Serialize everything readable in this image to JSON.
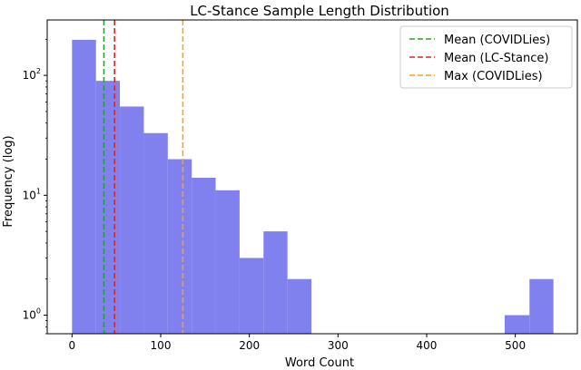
{
  "chart_data": {
    "type": "bar",
    "title": "LC-Stance Sample Length Distribution",
    "xlabel": "Word Count",
    "ylabel": "Frequency (log)",
    "y_scale": "log",
    "xlim": [
      -28,
      570
    ],
    "ylim": [
      0.7,
      290
    ],
    "bar_color": "#8080ee",
    "bins": [
      {
        "x0": 0,
        "x1": 27,
        "count": 198
      },
      {
        "x0": 27,
        "x1": 54,
        "count": 90
      },
      {
        "x0": 54,
        "x1": 81,
        "count": 55
      },
      {
        "x0": 81,
        "x1": 108,
        "count": 33
      },
      {
        "x0": 108,
        "x1": 135,
        "count": 20
      },
      {
        "x0": 135,
        "x1": 162,
        "count": 14
      },
      {
        "x0": 162,
        "x1": 189,
        "count": 11
      },
      {
        "x0": 189,
        "x1": 216,
        "count": 3
      },
      {
        "x0": 216,
        "x1": 243,
        "count": 5
      },
      {
        "x0": 243,
        "x1": 270,
        "count": 2
      },
      {
        "x0": 488,
        "x1": 516,
        "count": 1
      },
      {
        "x0": 516,
        "x1": 543,
        "count": 2
      }
    ],
    "x_ticks": [
      {
        "value": 0,
        "label": "0"
      },
      {
        "value": 100,
        "label": "100"
      },
      {
        "value": 200,
        "label": "200"
      },
      {
        "value": 300,
        "label": "300"
      },
      {
        "value": 400,
        "label": "400"
      },
      {
        "value": 500,
        "label": "500"
      }
    ],
    "y_ticks": [
      {
        "value": 1,
        "base": "10",
        "exp": "0"
      },
      {
        "value": 10,
        "base": "10",
        "exp": "1"
      },
      {
        "value": 100,
        "base": "10",
        "exp": "2"
      }
    ],
    "reference_lines": [
      {
        "name": "Mean (COVIDLies)",
        "x": 36,
        "color": "#2ca02c"
      },
      {
        "name": "Mean (LC-Stance)",
        "x": 48,
        "color": "#d62728"
      },
      {
        "name": "Max (COVIDLies)",
        "x": 125,
        "color": "#ff9f1c"
      }
    ],
    "legend_position": "top-right",
    "grid": false
  }
}
